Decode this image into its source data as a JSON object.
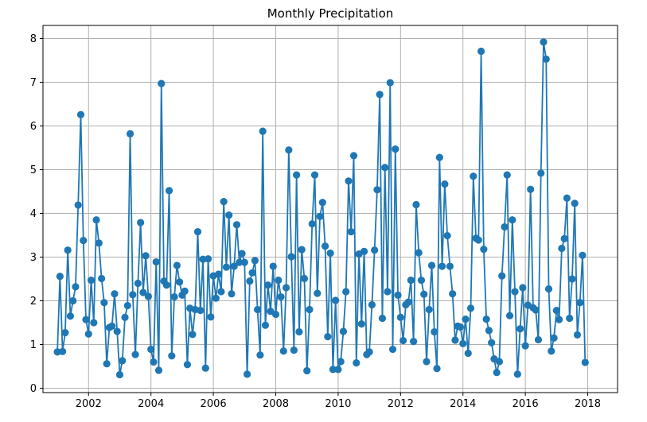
{
  "chart_data": {
    "type": "line",
    "title": "Monthly Precipitation",
    "xlabel": "",
    "ylabel": "",
    "grid": true,
    "color": "#1f77b4",
    "marker": "circle",
    "xlim": [
      "2000-07-15",
      "2018-12-15"
    ],
    "ylim": [
      -0.1,
      8.3
    ],
    "x_ticks": [
      "2002",
      "2004",
      "2006",
      "2008",
      "2010",
      "2012",
      "2014",
      "2016",
      "2018"
    ],
    "y_ticks": [
      "0",
      "1",
      "2",
      "3",
      "4",
      "5",
      "6",
      "7",
      "8"
    ],
    "series": [
      {
        "start": "2001-01",
        "frequency": "monthly",
        "values": [
          0.83,
          2.56,
          0.84,
          1.27,
          3.16,
          1.65,
          2.0,
          2.32,
          4.19,
          6.26,
          3.38,
          1.57,
          1.24,
          2.47,
          1.5,
          3.85,
          3.32,
          2.51,
          1.96,
          0.56,
          1.39,
          1.42,
          2.16,
          1.3,
          0.31,
          0.63,
          1.62,
          1.89,
          5.82,
          2.14,
          0.77,
          2.4,
          3.79,
          2.19,
          3.03,
          2.1,
          0.89,
          0.6,
          2.89,
          0.41,
          6.97,
          2.45,
          2.36,
          4.52,
          0.74,
          2.09,
          2.81,
          2.43,
          2.13,
          2.22,
          0.54,
          1.83,
          1.23,
          1.8,
          3.58,
          1.78,
          2.95,
          0.46,
          2.96,
          1.63,
          2.57,
          2.06,
          2.61,
          2.21,
          4.27,
          2.77,
          3.96,
          2.16,
          2.79,
          3.74,
          2.88,
          3.08,
          2.88,
          0.32,
          2.45,
          2.64,
          2.92,
          1.8,
          0.76,
          5.88,
          1.44,
          2.36,
          1.76,
          2.79,
          1.69,
          2.47,
          2.09,
          0.85,
          2.3,
          5.45,
          3.01,
          0.87,
          4.88,
          1.29,
          3.17,
          2.51,
          0.4,
          1.8,
          3.76,
          4.88,
          2.17,
          3.93,
          4.25,
          3.25,
          1.18,
          3.09,
          0.43,
          2.01,
          0.43,
          0.61,
          1.3,
          2.21,
          4.74,
          3.58,
          5.32,
          0.58,
          3.07,
          1.47,
          3.13,
          0.77,
          0.83,
          1.91,
          3.16,
          4.54,
          6.72,
          1.6,
          5.05,
          2.21,
          6.99,
          0.89,
          5.47,
          2.13,
          1.62,
          1.09,
          1.91,
          1.97,
          2.47,
          1.07,
          4.2,
          3.1,
          2.47,
          2.15,
          0.61,
          1.8,
          2.81,
          1.29,
          0.45,
          5.28,
          2.79,
          4.67,
          3.49,
          2.79,
          2.16,
          1.1,
          1.42,
          1.4,
          1.02,
          1.58,
          0.8,
          1.83,
          4.85,
          3.43,
          3.39,
          7.71,
          3.18,
          1.58,
          1.32,
          1.04,
          0.67,
          0.36,
          0.61,
          2.57,
          3.69,
          4.88,
          1.66,
          3.85,
          2.21,
          0.32,
          1.36,
          2.3,
          0.97,
          1.9,
          4.55,
          1.84,
          1.79,
          1.11,
          4.92,
          7.92,
          7.53,
          2.27,
          0.85,
          1.15,
          1.78,
          1.57,
          3.2,
          3.42,
          4.35,
          1.6,
          2.5,
          4.23,
          1.22,
          1.96,
          3.04,
          0.59
        ]
      }
    ]
  }
}
